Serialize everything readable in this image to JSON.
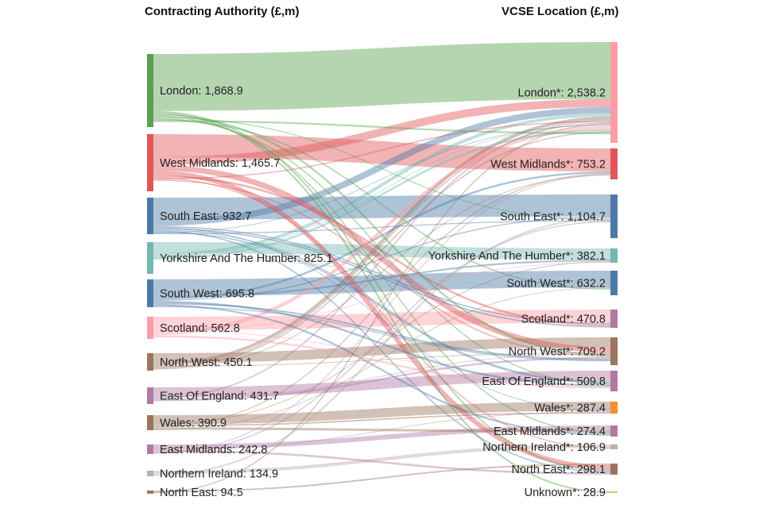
{
  "headers": {
    "left": "Contracting Authority (£,m)",
    "right": "VCSE Location (£,m)"
  },
  "left_nodes": [
    {
      "label": "London: 1,868.9",
      "name": "London",
      "value": 1868.9,
      "color": "#59a14f"
    },
    {
      "label": "West Midlands: 1,465.7",
      "name": "West Midlands",
      "value": 1465.7,
      "color": "#e15759"
    },
    {
      "label": "South East: 932.7",
      "name": "South East",
      "value": 932.7,
      "color": "#4e79a7"
    },
    {
      "label": "Yorkshire And The Humber: 825.1",
      "name": "Yorkshire And The Humber",
      "value": 825.1,
      "color": "#76b7b2"
    },
    {
      "label": "South West: 695.8",
      "name": "South West",
      "value": 695.8,
      "color": "#4e79a7"
    },
    {
      "label": "Scotland: 562.8",
      "name": "Scotland",
      "value": 562.8,
      "color": "#ff9da7"
    },
    {
      "label": "North West: 450.1",
      "name": "North West",
      "value": 450.1,
      "color": "#9c755f"
    },
    {
      "label": "East Of England: 431.7",
      "name": "East Of England",
      "value": 431.7,
      "color": "#b07aa1"
    },
    {
      "label": "Wales: 390.9",
      "name": "Wales",
      "value": 390.9,
      "color": "#9c755f"
    },
    {
      "label": "East Midlands: 242.8",
      "name": "East Midlands",
      "value": 242.8,
      "color": "#b07aa1"
    },
    {
      "label": "Northern Ireland: 134.9",
      "name": "Northern Ireland",
      "value": 134.9,
      "color": "#bab0ac"
    },
    {
      "label": "North East: 94.5",
      "name": "North East",
      "value": 94.5,
      "color": "#9c755f"
    }
  ],
  "right_nodes": [
    {
      "label": "London*: 2,538.2",
      "name": "London*",
      "value": 2538.2,
      "color": "#ff9da7"
    },
    {
      "label": "West Midlands*: 753.2",
      "name": "West Midlands*",
      "value": 753.2,
      "color": "#e15759"
    },
    {
      "label": "South East*: 1,104.7",
      "name": "South East*",
      "value": 1104.7,
      "color": "#4e79a7"
    },
    {
      "label": "Yorkshire And The Humber*: 382.1",
      "name": "Yorkshire And The Humber*",
      "value": 382.1,
      "color": "#76b7b2"
    },
    {
      "label": "South West*: 632.2",
      "name": "South West*",
      "value": 632.2,
      "color": "#4e79a7"
    },
    {
      "label": "Scotland*: 470.8",
      "name": "Scotland*",
      "value": 470.8,
      "color": "#b07aa1"
    },
    {
      "label": "North West*: 709.2",
      "name": "North West*",
      "value": 709.2,
      "color": "#9c755f"
    },
    {
      "label": "East Of England*: 509.8",
      "name": "East Of England*",
      "value": 509.8,
      "color": "#b07aa1"
    },
    {
      "label": "Wales*: 287.4",
      "name": "Wales*",
      "value": 287.4,
      "color": "#f28e2b"
    },
    {
      "label": "East Midlands*: 274.4",
      "name": "East Midlands*",
      "value": 274.4,
      "color": "#b07aa1"
    },
    {
      "label": "Northern Ireland*: 106.9",
      "name": "Northern Ireland*",
      "value": 106.9,
      "color": "#bab0ac"
    },
    {
      "label": "North East*: 298.1",
      "name": "North East*",
      "value": 298.1,
      "color": "#9c755f"
    },
    {
      "label": "Unknown*: 28.9",
      "name": "Unknown*",
      "value": 28.9,
      "color": "#edc948"
    }
  ]
}
